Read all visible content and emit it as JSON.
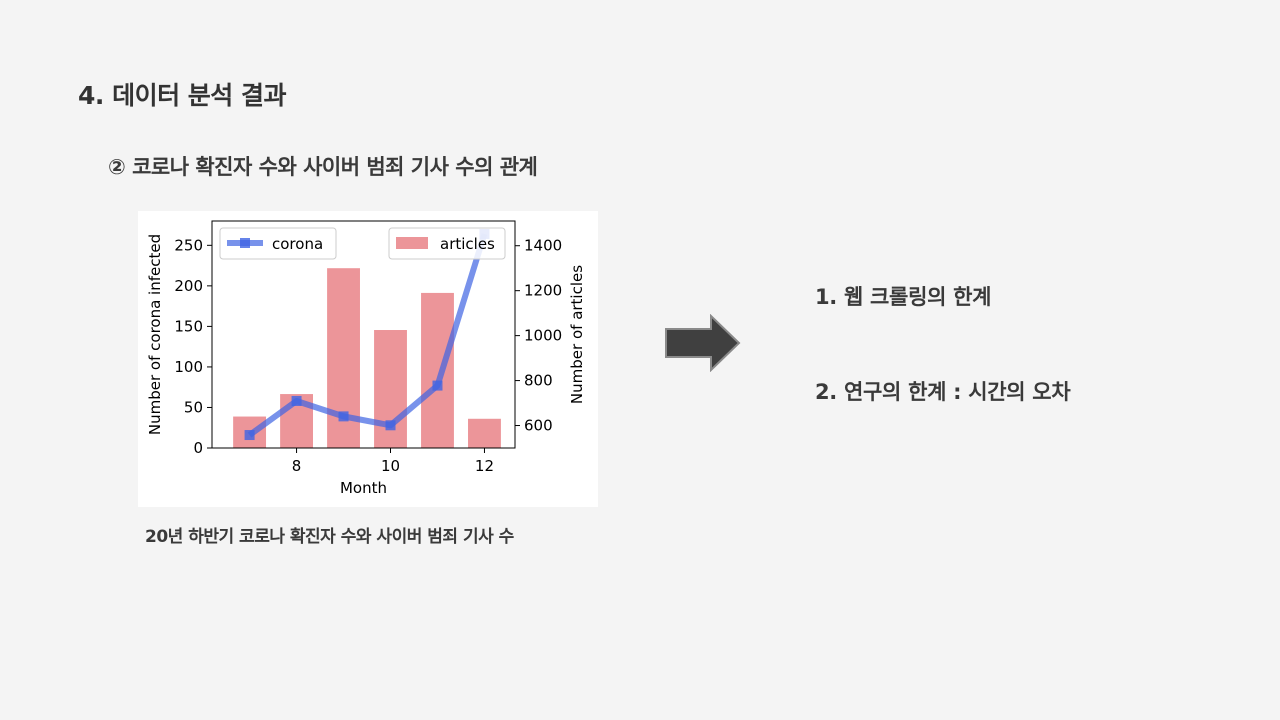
{
  "slide": {
    "title": "4. 데이터 분석 결과",
    "subtitle": "② 코로나 확진자 수와 사이버 범죄 기사 수의 관계",
    "caption": "20년 하반기 코로나 확진자 수와 사이버 범죄 기사 수",
    "points": [
      "1. 웹 크롤링의 한계",
      "2. 연구의 한계 : 시간의 오차"
    ],
    "arrow_icon": "right-arrow-icon"
  },
  "chart_data": {
    "type": "bar+line",
    "x": [
      7,
      8,
      9,
      10,
      11,
      12
    ],
    "xlabel": "Month",
    "xticks": [
      8,
      10,
      12
    ],
    "xlim": [
      6.2,
      12.65
    ],
    "bars": {
      "name": "articles",
      "axis": "right",
      "values": [
        640,
        740,
        1300,
        1025,
        1190,
        630
      ],
      "color": "#e77b7f"
    },
    "line": {
      "name": "corona",
      "axis": "left",
      "values": [
        16,
        58,
        39,
        28,
        77,
        264
      ],
      "color": "#3e64e3"
    },
    "left_axis": {
      "label": "Number of corona infected",
      "ticks": [
        0,
        50,
        100,
        150,
        200,
        250
      ],
      "ylim": [
        0,
        280
      ]
    },
    "right_axis": {
      "label": "Number of articles",
      "ticks": [
        600,
        800,
        1000,
        1200,
        1400
      ],
      "ylim": [
        500,
        1510
      ]
    },
    "legends": [
      {
        "label": "corona",
        "placement": "top-left"
      },
      {
        "label": "articles",
        "placement": "top-right"
      }
    ]
  }
}
